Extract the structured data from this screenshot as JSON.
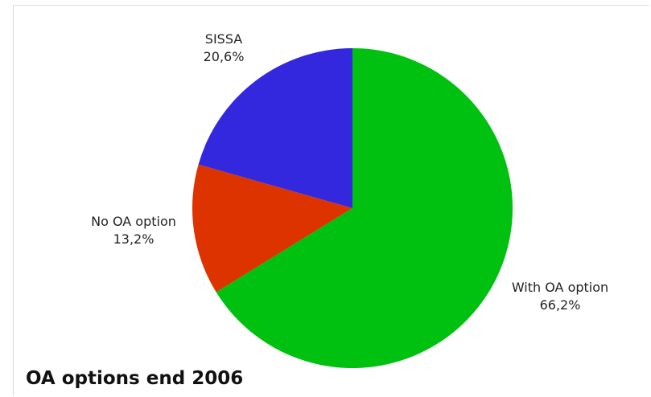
{
  "chart_data": {
    "type": "pie",
    "title": "OA options end 2006",
    "slices": [
      {
        "label": "With OA option",
        "value": 66.2,
        "value_label": "66,2%",
        "color": "#00c010"
      },
      {
        "label": "No OA option",
        "value": 13.2,
        "value_label": "13,2%",
        "color": "#dd3300"
      },
      {
        "label": "SISSA",
        "value": 20.6,
        "value_label": "20,6%",
        "color": "#3328dd"
      }
    ],
    "start_angle": "12 o'clock",
    "direction": "clockwise",
    "legend": "none (labels outside slices)"
  }
}
